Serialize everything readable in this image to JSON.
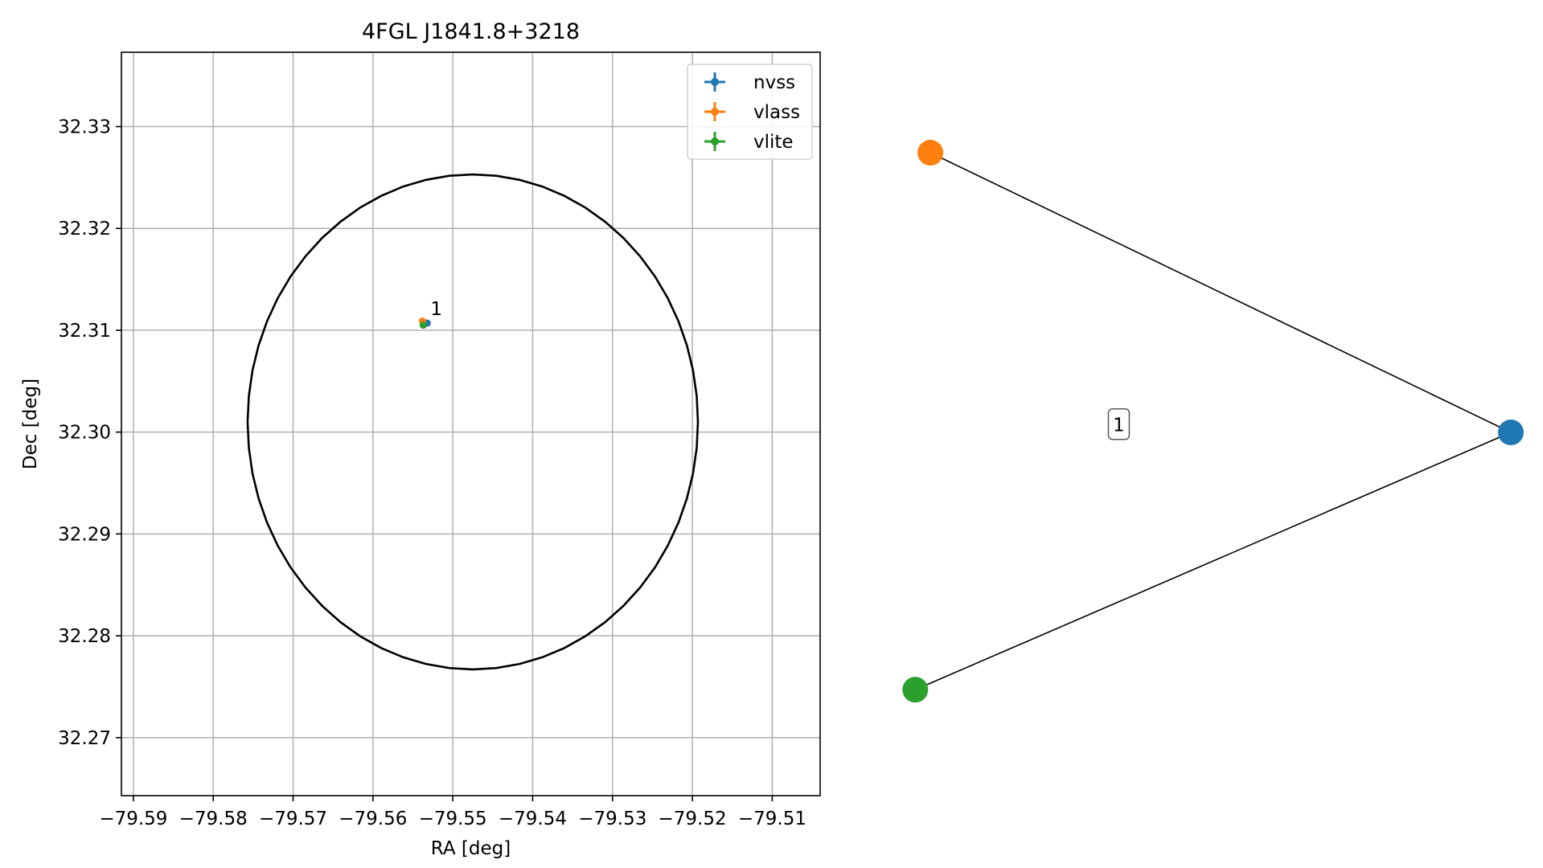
{
  "chart_data": [
    {
      "type": "scatter",
      "title": "4FGL J1841.8+3218",
      "xlabel": "RA [deg]",
      "ylabel": "Dec [deg]",
      "xlim": [
        -79.5915,
        -79.504
      ],
      "ylim": [
        32.2643,
        32.3373
      ],
      "xticks": [
        -79.59,
        -79.58,
        -79.57,
        -79.56,
        -79.55,
        -79.54,
        -79.53,
        -79.52,
        -79.51
      ],
      "xtick_labels": [
        "−79.59",
        "−79.58",
        "−79.57",
        "−79.56",
        "−79.55",
        "−79.54",
        "−79.53",
        "−79.52",
        "−79.51"
      ],
      "yticks": [
        32.27,
        32.28,
        32.29,
        32.3,
        32.31,
        32.32,
        32.33
      ],
      "ytick_labels": [
        "32.27",
        "32.28",
        "32.29",
        "32.30",
        "32.31",
        "32.32",
        "32.33"
      ],
      "grid": true,
      "legend_position": "top-right",
      "series": [
        {
          "name": "nvss",
          "color": "#1f77b4",
          "x": [
            -79.5532
          ],
          "y": [
            32.3107
          ]
        },
        {
          "name": "vlass",
          "color": "#ff7f0e",
          "x": [
            -79.5538
          ],
          "y": [
            32.3109
          ]
        },
        {
          "name": "vlite",
          "color": "#2ca02c",
          "x": [
            -79.5537
          ],
          "y": [
            32.3105
          ]
        }
      ],
      "annotations": [
        {
          "text": "1",
          "x": -79.5528,
          "y": 32.3118
        }
      ],
      "ellipse": {
        "center": [
          -79.5475,
          32.301
        ],
        "ra_radius": 0.0282,
        "dec_radius": 0.0243,
        "color": "#000000"
      }
    },
    {
      "type": "network",
      "nodes": [
        {
          "id": "nvss",
          "color": "#1f77b4",
          "x": 1.0,
          "y": 0.0
        },
        {
          "id": "vlass",
          "color": "#ff7f0e",
          "x": -0.92,
          "y": 1.0
        },
        {
          "id": "vlite",
          "color": "#2ca02c",
          "x": -0.97,
          "y": -0.92
        }
      ],
      "edges": [
        {
          "source": "nvss",
          "target": "vlass"
        },
        {
          "source": "nvss",
          "target": "vlite"
        }
      ],
      "label": "1"
    }
  ]
}
